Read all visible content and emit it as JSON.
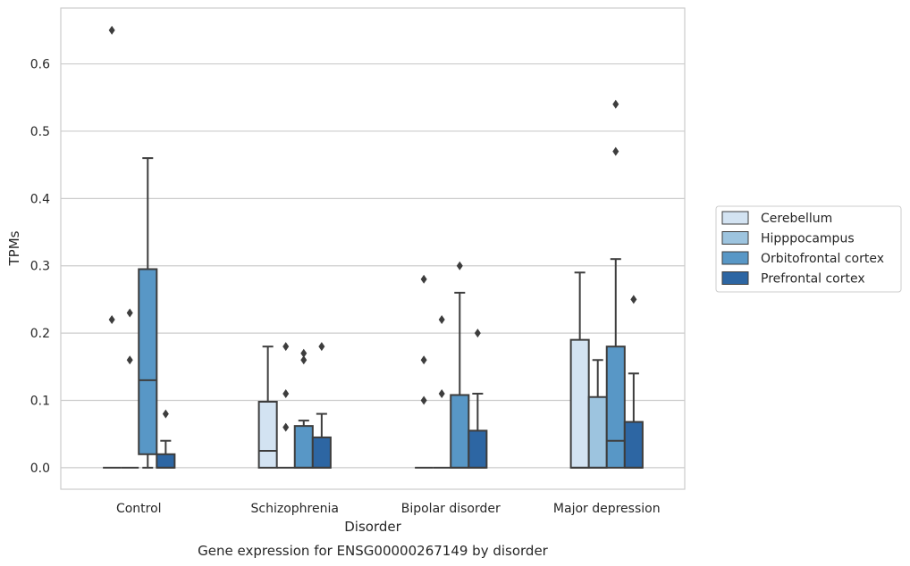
{
  "chart_data": {
    "type": "boxplot",
    "title": "",
    "caption": "Gene expression for ENSG00000267149 by disorder",
    "xlabel": "Disorder",
    "ylabel": "TPMs",
    "ylim": [
      -0.032,
      0.683
    ],
    "yticks": [
      "0.0",
      "0.1",
      "0.2",
      "0.3",
      "0.4",
      "0.5",
      "0.6"
    ],
    "categories": [
      "Control",
      "Schizophrenia",
      "Bipolar disorder",
      "Major depression"
    ],
    "grid": "horizontal",
    "legend_position": "right",
    "series": [
      {
        "name": "Cerebellum",
        "color": "#d3e3f2",
        "boxes": [
          {
            "whislo": 0.0,
            "q1": 0.0,
            "med": 0.0,
            "q3": 0.0,
            "whishi": 0.0,
            "fliers": [
              0.22,
              0.65
            ]
          },
          {
            "whislo": 0.0,
            "q1": 0.0,
            "med": 0.025,
            "q3": 0.098,
            "whishi": 0.18,
            "fliers": []
          },
          {
            "whislo": 0.0,
            "q1": 0.0,
            "med": 0.0,
            "q3": 0.0,
            "whishi": 0.0,
            "fliers": [
              0.1,
              0.16,
              0.28
            ]
          },
          {
            "whislo": 0.0,
            "q1": 0.0,
            "med": 0.0,
            "q3": 0.19,
            "whishi": 0.29,
            "fliers": []
          }
        ]
      },
      {
        "name": "Hipppocampus",
        "color": "#9dc4df",
        "boxes": [
          {
            "whislo": 0.0,
            "q1": 0.0,
            "med": 0.0,
            "q3": 0.0,
            "whishi": 0.0,
            "fliers": [
              0.16,
              0.23
            ]
          },
          {
            "whislo": 0.0,
            "q1": 0.0,
            "med": 0.0,
            "q3": 0.0,
            "whishi": 0.0,
            "fliers": [
              0.06,
              0.11,
              0.18
            ]
          },
          {
            "whislo": 0.0,
            "q1": 0.0,
            "med": 0.0,
            "q3": 0.0,
            "whishi": 0.0,
            "fliers": [
              0.11,
              0.22
            ]
          },
          {
            "whislo": 0.0,
            "q1": 0.0,
            "med": 0.0,
            "q3": 0.105,
            "whishi": 0.16,
            "fliers": []
          }
        ]
      },
      {
        "name": "Orbitofrontal cortex",
        "color": "#5897c6",
        "boxes": [
          {
            "whislo": 0.0,
            "q1": 0.02,
            "med": 0.13,
            "q3": 0.295,
            "whishi": 0.46,
            "fliers": []
          },
          {
            "whislo": 0.0,
            "q1": 0.0,
            "med": 0.0,
            "q3": 0.062,
            "whishi": 0.07,
            "fliers": [
              0.16,
              0.17
            ]
          },
          {
            "whislo": 0.0,
            "q1": 0.0,
            "med": 0.0,
            "q3": 0.108,
            "whishi": 0.26,
            "fliers": [
              0.3
            ]
          },
          {
            "whislo": 0.0,
            "q1": 0.0,
            "med": 0.04,
            "q3": 0.18,
            "whishi": 0.31,
            "fliers": [
              0.47,
              0.54
            ]
          }
        ]
      },
      {
        "name": "Prefrontal cortex",
        "color": "#2d66a3",
        "boxes": [
          {
            "whislo": 0.0,
            "q1": 0.0,
            "med": 0.0,
            "q3": 0.02,
            "whishi": 0.04,
            "fliers": [
              0.08
            ]
          },
          {
            "whislo": 0.0,
            "q1": 0.0,
            "med": 0.0,
            "q3": 0.045,
            "whishi": 0.08,
            "fliers": [
              0.18
            ]
          },
          {
            "whislo": 0.0,
            "q1": 0.0,
            "med": 0.0,
            "q3": 0.055,
            "whishi": 0.11,
            "fliers": [
              0.2
            ]
          },
          {
            "whislo": 0.0,
            "q1": 0.0,
            "med": 0.0,
            "q3": 0.068,
            "whishi": 0.14,
            "fliers": [
              0.25
            ]
          }
        ]
      }
    ]
  }
}
